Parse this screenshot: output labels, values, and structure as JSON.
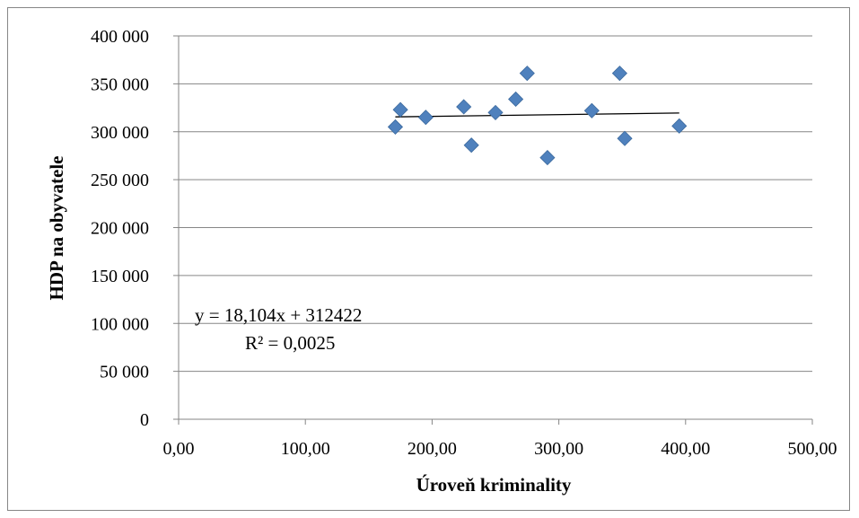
{
  "chart_data": {
    "type": "scatter",
    "title": "",
    "xlabel": "Úroveň kriminality",
    "ylabel": "HDP na obyvatele",
    "xlim": [
      0,
      500
    ],
    "ylim": [
      0,
      400000
    ],
    "x_ticks": [
      "0,00",
      "100,00",
      "200,00",
      "300,00",
      "400,00",
      "500,00"
    ],
    "y_ticks": [
      "0",
      "50 000",
      "100 000",
      "150 000",
      "200 000",
      "250 000",
      "300 000",
      "350 000",
      "400 000"
    ],
    "grid": "horizontal",
    "legend": "none",
    "marker": "diamond",
    "marker_color": "#4F81BD",
    "points": [
      {
        "x": 171,
        "y": 305000
      },
      {
        "x": 175,
        "y": 323000
      },
      {
        "x": 195,
        "y": 315000
      },
      {
        "x": 225,
        "y": 326000
      },
      {
        "x": 231,
        "y": 286000
      },
      {
        "x": 250,
        "y": 320000
      },
      {
        "x": 266,
        "y": 334000
      },
      {
        "x": 275,
        "y": 361000
      },
      {
        "x": 291,
        "y": 273000
      },
      {
        "x": 326,
        "y": 322000
      },
      {
        "x": 348,
        "y": 361000
      },
      {
        "x": 352,
        "y": 293000
      },
      {
        "x": 395,
        "y": 306000
      }
    ],
    "trendline": {
      "type": "linear",
      "slope": 18.104,
      "intercept": 312422,
      "x_range": [
        171,
        395
      ],
      "equation": "y = 18,104x + 312422",
      "r_squared": "R² = 0,0025"
    }
  }
}
